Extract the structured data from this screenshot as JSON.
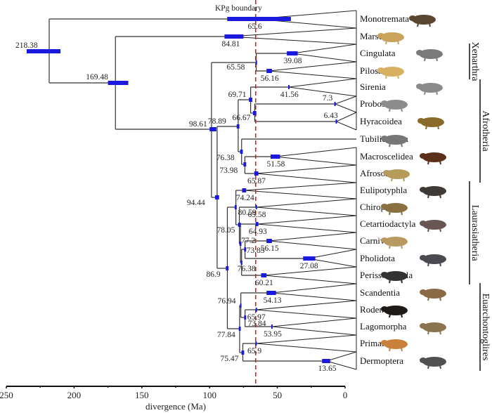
{
  "chart_data": {
    "type": "phylogenetic-tree",
    "title": "",
    "xlabel": "divergence (Ma)",
    "xlim": [
      250,
      0
    ],
    "xticks": [
      250,
      200,
      150,
      100,
      50,
      0
    ],
    "minor_ticks": [
      225,
      175,
      125,
      75,
      25
    ],
    "annotation": {
      "label": "KPg boundary",
      "x": 66,
      "color": "#cc2222",
      "style": "dashed"
    },
    "hpd_color": "#1a1adf",
    "taxa": [
      "Monotremata",
      "Marsupialia",
      "Cingulata",
      "Pilosa",
      "Sirenia",
      "Proboscidea",
      "Hyracoidea",
      "Tubilidentata",
      "Macroscelidea",
      "Afrosoricida",
      "Eulipotyphla",
      "Chiroptera",
      "Cetartiodactyla",
      "Carnivora",
      "Pholidota",
      "Perissodactyla",
      "Scandentia",
      "Rodentia",
      "Lagomorpha",
      "Primates",
      "Dermoptera"
    ],
    "clade_crowns": [
      {
        "taxon": "Monotremata",
        "age": 65.6,
        "hpd": [
          87,
          40
        ]
      },
      {
        "taxon": "Marsupialia",
        "age": 84.81,
        "hpd": [
          89,
          75
        ]
      },
      {
        "taxon": "Cingulata",
        "age": 39.08,
        "hpd": [
          43,
          35
        ]
      },
      {
        "taxon": "Pilosa",
        "age": 56.16,
        "hpd": [
          58,
          54
        ]
      },
      {
        "taxon": "Sirenia",
        "age": 41.56,
        "hpd": [
          42,
          41
        ]
      },
      {
        "taxon": "Proboscidea",
        "age": 7.3,
        "hpd": [
          8,
          7
        ]
      },
      {
        "taxon": "Hyracoidea",
        "age": 6.43,
        "hpd": [
          7,
          6
        ]
      },
      {
        "taxon": "Macroscelidea",
        "age": 51.58,
        "hpd": [
          55,
          48
        ]
      },
      {
        "taxon": "Afrosoricida",
        "age": 65.87,
        "hpd": [
          67,
          64
        ]
      },
      {
        "taxon": "Eulipotyphla",
        "age": 74.24,
        "hpd": [
          76,
          73
        ]
      },
      {
        "taxon": "Chiroptera",
        "age": 65.58,
        "hpd": [
          66,
          65
        ]
      },
      {
        "taxon": "Cetartiodactyla",
        "age": 64.93,
        "hpd": [
          66,
          64
        ]
      },
      {
        "taxon": "Carnivora",
        "age": 56.15,
        "hpd": [
          58,
          54
        ]
      },
      {
        "taxon": "Pholidota",
        "age": 27.08,
        "hpd": [
          31,
          22
        ]
      },
      {
        "taxon": "Perissodactyla",
        "age": 60.21,
        "hpd": [
          62,
          58
        ]
      },
      {
        "taxon": "Scandentia",
        "age": 54.13,
        "hpd": [
          58,
          51
        ]
      },
      {
        "taxon": "Rodentia",
        "age": 65.97,
        "hpd": [
          66,
          65.5
        ]
      },
      {
        "taxon": "Lagomorpha",
        "age": 53.95,
        "hpd": [
          54.5,
          53.5
        ]
      },
      {
        "taxon": "Primates",
        "age": 65.9,
        "hpd": [
          66.2,
          65.5
        ]
      },
      {
        "taxon": "Dermoptera",
        "age": 13.65,
        "hpd": [
          17,
          11
        ]
      }
    ],
    "internal_nodes": [
      {
        "id": "root",
        "age": 218.38,
        "hpd": [
          235,
          210
        ],
        "children": [
          "Monotremata",
          "theria"
        ]
      },
      {
        "id": "theria",
        "age": 169.48,
        "hpd": [
          175,
          160
        ],
        "children": [
          "Marsupialia",
          "placentalia"
        ]
      },
      {
        "id": "placentalia",
        "age": 98.61,
        "hpd": [
          100,
          95
        ],
        "children": [
          "xenarthra",
          "n9444"
        ]
      },
      {
        "id": "xenarthra",
        "age": 65.58,
        "hpd": [
          66,
          65
        ],
        "children": [
          "Cingulata",
          "Pilosa"
        ]
      },
      {
        "id": "n9444",
        "age": 94.44,
        "hpd": [
          96,
          93
        ],
        "children": [
          "afrotheria",
          "boreo"
        ]
      },
      {
        "id": "afrotheria",
        "age": 78.89,
        "hpd": [
          80,
          78
        ],
        "children": [
          "paenungulata",
          "afroinsectiphilia"
        ]
      },
      {
        "id": "paenungulata",
        "age": 69.71,
        "hpd": [
          71,
          68.5
        ],
        "children": [
          "Sirenia",
          "tethytheria"
        ]
      },
      {
        "id": "tethytheria",
        "age": 66.67,
        "hpd": [
          68,
          65.5
        ],
        "children": [
          "Proboscidea",
          "Hyracoidea"
        ]
      },
      {
        "id": "afroinsectiphilia",
        "age": 76.38,
        "hpd": [
          77.5,
          75.5
        ],
        "children": [
          "Tubilidentata",
          "afroinsectivora"
        ]
      },
      {
        "id": "afroinsectivora",
        "age": 73.98,
        "hpd": [
          75,
          73
        ],
        "children": [
          "Macroscelidea",
          "Afrosoricida"
        ]
      },
      {
        "id": "boreo",
        "age": 86.9,
        "hpd": [
          88,
          86
        ],
        "children": [
          "laurasiatheria",
          "euarchontoglires"
        ]
      },
      {
        "id": "laurasiatheria",
        "age": 80.59,
        "hpd": [
          81.5,
          80
        ],
        "children": [
          "Eulipotyphla",
          "scrotifera"
        ]
      },
      {
        "id": "scrotifera",
        "age": 78.05,
        "hpd": [
          79,
          77
        ],
        "children": [
          "Chiroptera",
          "fereuungulata"
        ]
      },
      {
        "id": "fereuungulata",
        "age": 77.2,
        "hpd": [
          78,
          76.5
        ],
        "children": [
          "Cetartiodactyla",
          "n7638L"
        ]
      },
      {
        "id": "n7638L",
        "age": 76.38,
        "hpd": [
          77,
          75.8
        ],
        "children": [
          "ferae",
          "Perissodactyla"
        ]
      },
      {
        "id": "ferae",
        "age": 73.85,
        "hpd": [
          74.5,
          73
        ],
        "children": [
          "Carnivora",
          "Pholidota"
        ]
      },
      {
        "id": "euarchontoglires",
        "age": 77.84,
        "hpd": [
          78.5,
          77
        ],
        "children": [
          "glires_sc",
          "euarchonta"
        ]
      },
      {
        "id": "glires_sc",
        "age": 76.94,
        "hpd": [
          77.5,
          76.5
        ],
        "children": [
          "Scandentia",
          "glires"
        ]
      },
      {
        "id": "glires",
        "age": 73.84,
        "hpd": [
          74.5,
          73
        ],
        "children": [
          "Rodentia",
          "Lagomorpha"
        ]
      },
      {
        "id": "euarchonta",
        "age": 75.47,
        "hpd": [
          76.5,
          74.5
        ],
        "children": [
          "Primates",
          "Dermoptera"
        ]
      }
    ],
    "superorders": [
      {
        "name": "Xenarthra",
        "from": "Cingulata",
        "to": "Pilosa"
      },
      {
        "name": "Afrotheria",
        "from": "Sirenia",
        "to": "Afrosoricida"
      },
      {
        "name": "Laurasiatheria",
        "from": "Eulipotyphla",
        "to": "Perissodactyla"
      },
      {
        "name": "Euarchontoglires",
        "from": "Scandentia",
        "to": "Dermoptera"
      }
    ],
    "silhouettes": [
      {
        "taxon": "Monotremata",
        "animal": "platypus",
        "color": "#5a4530"
      },
      {
        "taxon": "Marsupialia",
        "animal": "quoll",
        "color": "#c9a35a"
      },
      {
        "taxon": "Cingulata",
        "animal": "armadillo",
        "color": "#7a7a7a"
      },
      {
        "taxon": "Pilosa",
        "animal": "anteater",
        "color": "#d8b060"
      },
      {
        "taxon": "Sirenia",
        "animal": "manatee",
        "color": "#8a8a8a"
      },
      {
        "taxon": "Proboscidea",
        "animal": "elephant",
        "color": "#8c8c8c"
      },
      {
        "taxon": "Hyracoidea",
        "animal": "hyrax",
        "color": "#8a6a2a"
      },
      {
        "taxon": "Tubilidentata",
        "animal": "aardvark",
        "color": "#777"
      },
      {
        "taxon": "Macroscelidea",
        "animal": "elephant-shrew",
        "color": "#5a3018"
      },
      {
        "taxon": "Afrosoricida",
        "animal": "golden-mole",
        "color": "#b59a5a"
      },
      {
        "taxon": "Eulipotyphla",
        "animal": "hedgehog",
        "color": "#3f3a35"
      },
      {
        "taxon": "Chiroptera",
        "animal": "bat",
        "color": "#8a7040"
      },
      {
        "taxon": "Cetartiodactyla",
        "animal": "pygmy-hippo",
        "color": "#6a5555"
      },
      {
        "taxon": "Carnivora",
        "animal": "hyena",
        "color": "#b89a60"
      },
      {
        "taxon": "Pholidota",
        "animal": "pangolin",
        "color": "#4a4a50"
      },
      {
        "taxon": "Perissodactyla",
        "animal": "zebra",
        "color": "#333"
      },
      {
        "taxon": "Scandentia",
        "animal": "treeshrew",
        "color": "#8a6a45"
      },
      {
        "taxon": "Rodentia",
        "animal": "porcupine",
        "color": "#1e1a18"
      },
      {
        "taxon": "Lagomorpha",
        "animal": "rabbit",
        "color": "#8a7450"
      },
      {
        "taxon": "Primates",
        "animal": "proboscis-monkey",
        "color": "#c9803a"
      },
      {
        "taxon": "Dermoptera",
        "animal": "colugo",
        "color": "#505050"
      }
    ]
  }
}
